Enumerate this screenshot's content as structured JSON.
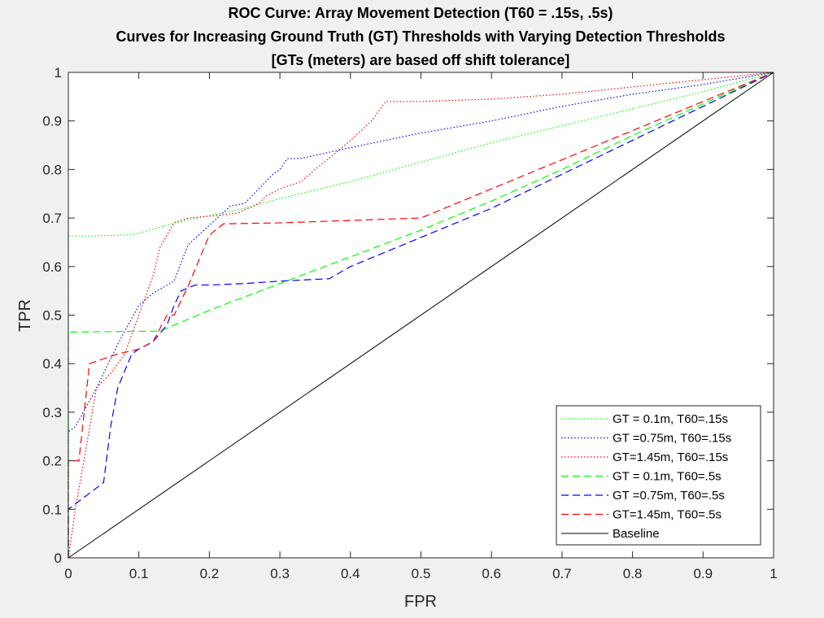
{
  "chart_data": {
    "type": "line",
    "title": [
      "ROC Curve: Array Movement Detection (T60 = .15s, .5s)",
      "Curves for Increasing Ground Truth (GT) Thresholds with Varying Detection Thresholds",
      "[GTs (meters) are based off shift tolerance]"
    ],
    "xlabel": "FPR",
    "ylabel": "TPR",
    "xlim": [
      0,
      1
    ],
    "ylim": [
      0,
      1
    ],
    "xticks": [
      "0",
      "0.1",
      "0.2",
      "0.3",
      "0.4",
      "0.5",
      "0.6",
      "0.7",
      "0.8",
      "0.9",
      "1"
    ],
    "yticks": [
      "0",
      "0.1",
      "0.2",
      "0.3",
      "0.4",
      "0.5",
      "0.6",
      "0.7",
      "0.8",
      "0.9",
      "1"
    ],
    "grid": false,
    "legend_position": "bottom-right",
    "series": [
      {
        "name": "GT = 0.1m, T60=.15s",
        "color": "#00ff00",
        "style": "dotted",
        "x": [
          0,
          0,
          0.03,
          0.08,
          0.1,
          0.15,
          0.2,
          0.25,
          0.3,
          0.4,
          0.5,
          0.6,
          0.7,
          0.8,
          0.9,
          1
        ],
        "y": [
          0,
          0.663,
          0.663,
          0.665,
          0.668,
          0.69,
          0.705,
          0.72,
          0.74,
          0.775,
          0.815,
          0.855,
          0.89,
          0.925,
          0.96,
          1
        ]
      },
      {
        "name": "GT =0.75m, T60=.15s",
        "color": "#0000ff",
        "style": "dotted",
        "x": [
          0,
          0,
          0.01,
          0.04,
          0.07,
          0.1,
          0.12,
          0.15,
          0.17,
          0.2,
          0.23,
          0.25,
          0.27,
          0.29,
          0.3,
          0.31,
          0.33,
          0.4,
          0.5,
          0.6,
          0.7,
          0.8,
          0.9,
          1
        ],
        "y": [
          0,
          0.26,
          0.27,
          0.35,
          0.44,
          0.52,
          0.545,
          0.57,
          0.645,
          0.685,
          0.725,
          0.73,
          0.76,
          0.79,
          0.8,
          0.822,
          0.823,
          0.845,
          0.875,
          0.9,
          0.93,
          0.955,
          0.975,
          1
        ]
      },
      {
        "name": "GT=1.45m, T60=.15s",
        "color": "#ff0000",
        "style": "dotted",
        "x": [
          0,
          0.01,
          0.04,
          0.06,
          0.08,
          0.1,
          0.12,
          0.13,
          0.15,
          0.17,
          0.21,
          0.24,
          0.27,
          0.28,
          0.3,
          0.33,
          0.35,
          0.38,
          0.4,
          0.43,
          0.45,
          0.5,
          0.6,
          0.7,
          0.8,
          0.9,
          1
        ],
        "y": [
          0,
          0.1,
          0.35,
          0.38,
          0.42,
          0.5,
          0.58,
          0.64,
          0.69,
          0.7,
          0.705,
          0.71,
          0.73,
          0.745,
          0.76,
          0.775,
          0.8,
          0.835,
          0.86,
          0.9,
          0.94,
          0.94,
          0.945,
          0.955,
          0.97,
          0.985,
          1
        ]
      },
      {
        "name": "GT = 0.1m, T60=.5s",
        "color": "#00ff00",
        "style": "dashed",
        "x": [
          0,
          0,
          0.13,
          0.2,
          0.3,
          0.4,
          0.5,
          0.6,
          0.7,
          0.8,
          0.9,
          1
        ],
        "y": [
          0,
          0.465,
          0.467,
          0.51,
          0.565,
          0.62,
          0.675,
          0.735,
          0.8,
          0.87,
          0.935,
          1
        ]
      },
      {
        "name": "GT =0.75m, T60=.5s",
        "color": "#0000ff",
        "style": "dashed",
        "x": [
          0,
          0,
          0.05,
          0.06,
          0.07,
          0.09,
          0.1,
          0.12,
          0.14,
          0.15,
          0.16,
          0.18,
          0.2,
          0.25,
          0.3,
          0.37,
          0.4,
          0.5,
          0.6,
          0.7,
          0.8,
          0.9,
          1
        ],
        "y": [
          0,
          0.1,
          0.155,
          0.27,
          0.35,
          0.42,
          0.43,
          0.445,
          0.48,
          0.52,
          0.55,
          0.562,
          0.562,
          0.565,
          0.57,
          0.575,
          0.6,
          0.66,
          0.72,
          0.79,
          0.86,
          0.93,
          1
        ]
      },
      {
        "name": "GT=1.45m, T60=.5s",
        "color": "#ff0000",
        "style": "dashed",
        "x": [
          0,
          0,
          0.015,
          0.03,
          0.07,
          0.1,
          0.12,
          0.14,
          0.15,
          0.17,
          0.2,
          0.22,
          0.3,
          0.4,
          0.5,
          0.6,
          0.7,
          0.8,
          0.9,
          1
        ],
        "y": [
          0,
          0.2,
          0.2,
          0.4,
          0.42,
          0.43,
          0.445,
          0.5,
          0.5,
          0.56,
          0.665,
          0.688,
          0.69,
          0.695,
          0.7,
          0.76,
          0.82,
          0.88,
          0.94,
          1
        ]
      },
      {
        "name": "Baseline",
        "color": "#000000",
        "style": "solid",
        "x": [
          0,
          1
        ],
        "y": [
          0,
          1
        ]
      }
    ]
  }
}
